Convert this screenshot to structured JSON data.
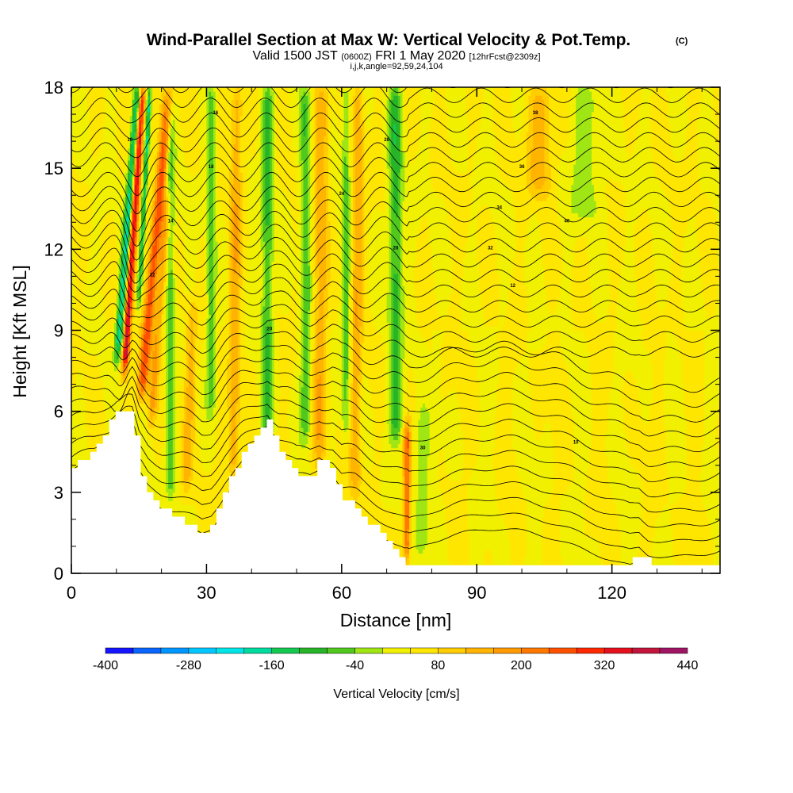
{
  "chart_data": {
    "type": "heatmap",
    "title": "Wind-Parallel Section at Max W: Vertical Velocity & Pot.Temp.",
    "title_suffix": "(C)",
    "subtitle": {
      "valid_label": "Valid 1500 JST",
      "zulu": "(0600Z)",
      "date": "FRI 1 May 2020",
      "forecast": "[12hrFcst@2309z]"
    },
    "params_line": "i,j,k,angle=92,59,24,104",
    "xlabel": "Distance [nm]",
    "ylabel": "Height [Kft MSL]",
    "xlim": [
      0,
      144
    ],
    "ylim": [
      0,
      18
    ],
    "x_ticks": [
      "0",
      "30",
      "60",
      "90",
      "120"
    ],
    "x_tick_values": [
      0,
      30,
      60,
      90,
      120
    ],
    "y_ticks": [
      "0",
      "3",
      "6",
      "9",
      "12",
      "15",
      "18"
    ],
    "y_tick_values": [
      0,
      3,
      6,
      9,
      12,
      15,
      18
    ],
    "colorbar": {
      "title": "Vertical Velocity [cm/s]",
      "levels": [
        -400,
        -360,
        -320,
        -280,
        -240,
        -200,
        -160,
        -120,
        -80,
        -40,
        0,
        40,
        80,
        120,
        160,
        200,
        240,
        280,
        320,
        360,
        400,
        440
      ],
      "tick_labels": [
        "-400",
        "-280",
        "-160",
        "-40",
        "80",
        "200",
        "320",
        "440"
      ],
      "tick_values": [
        -400,
        -280,
        -160,
        -40,
        80,
        200,
        320,
        440
      ],
      "colors": [
        "#1414ff",
        "#0a64ff",
        "#0096ff",
        "#00c8ff",
        "#00e6e6",
        "#00dca0",
        "#14c850",
        "#28b428",
        "#50c81e",
        "#a0e614",
        "#f0f000",
        "#ffe600",
        "#ffcd00",
        "#ffb400",
        "#ff9b00",
        "#ff7800",
        "#ff5000",
        "#ff2800",
        "#e60f1e",
        "#c3143c",
        "#a01464",
        "#641496"
      ]
    },
    "terrain": {
      "x": [
        0,
        2,
        5,
        8,
        10,
        12,
        13.5,
        15,
        17,
        20,
        24,
        29,
        31,
        34,
        38,
        42,
        43.5,
        46,
        50,
        53,
        55,
        58,
        60,
        63,
        66,
        70,
        74,
        78,
        90,
        110,
        124,
        126,
        128,
        130,
        144
      ],
      "h": [
        3.9,
        4.2,
        4.7,
        5.5,
        6.1,
        6.1,
        5.8,
        3.8,
        2.9,
        2.4,
        2.0,
        1.4,
        1.8,
        3.2,
        4.5,
        5.5,
        5.8,
        4.6,
        3.6,
        3.6,
        4.2,
        3.8,
        2.7,
        2.5,
        1.9,
        1.2,
        0.4,
        0.35,
        0.35,
        0.35,
        0.35,
        0.7,
        0.35,
        0.35,
        0.35
      ]
    },
    "updraft_bands": [
      {
        "x": 11.8,
        "bottom": 7.5,
        "top": 18,
        "tilt": 0.38,
        "width": 0.8,
        "peak": 340
      },
      {
        "x": 15.5,
        "bottom": 6.5,
        "top": 18,
        "tilt": 0.55,
        "width": 1.2,
        "peak": 230
      },
      {
        "x": 17.6,
        "bottom": 5.5,
        "top": 14,
        "tilt": 0.45,
        "width": 1.0,
        "peak": 120
      },
      {
        "x": 25.5,
        "bottom": 3.0,
        "top": 10,
        "tilt": 0.2,
        "width": 1.2,
        "peak": 90
      },
      {
        "x": 36,
        "bottom": 3.5,
        "top": 18,
        "tilt": 0.05,
        "width": 1.3,
        "peak": 110
      },
      {
        "x": 55,
        "bottom": 4.0,
        "top": 18,
        "tilt": 0.05,
        "width": 1.5,
        "peak": 110
      },
      {
        "x": 63,
        "bottom": 3.0,
        "top": 18,
        "tilt": 0.05,
        "width": 1.3,
        "peak": 110
      },
      {
        "x": 74.5,
        "bottom": 0.5,
        "top": 5.5,
        "tilt": 0.0,
        "width": 0.8,
        "peak": 200
      },
      {
        "x": 104,
        "bottom": 14,
        "top": 18,
        "tilt": 0.0,
        "width": 3.0,
        "peak": 100
      }
    ],
    "downdraft_bands": [
      {
        "x": 10.3,
        "bottom": 8.0,
        "top": 18,
        "tilt": 0.45,
        "width": 0.9,
        "peak": -230
      },
      {
        "x": 15.0,
        "bottom": 10,
        "top": 18,
        "tilt": 0.3,
        "width": 0.5,
        "peak": -200
      },
      {
        "x": 22,
        "bottom": 3.0,
        "top": 18,
        "tilt": 0.0,
        "width": 1.0,
        "peak": -110
      },
      {
        "x": 31,
        "bottom": 6.0,
        "top": 18,
        "tilt": 0.0,
        "width": 1.0,
        "peak": -100
      },
      {
        "x": 43.5,
        "bottom": 5.0,
        "top": 18,
        "tilt": 0.0,
        "width": 1.3,
        "peak": -130
      },
      {
        "x": 52,
        "bottom": 5.0,
        "top": 18,
        "tilt": 0.0,
        "width": 1.2,
        "peak": -110
      },
      {
        "x": 61,
        "bottom": 5.0,
        "top": 18,
        "tilt": 0.0,
        "width": 1.0,
        "peak": -100
      },
      {
        "x": 72,
        "bottom": 5.0,
        "top": 18,
        "tilt": 0.0,
        "width": 1.5,
        "peak": -140
      },
      {
        "x": 78,
        "bottom": 0.5,
        "top": 6.0,
        "tilt": 0.0,
        "width": 1.8,
        "peak": -60
      },
      {
        "x": 114,
        "bottom": 13,
        "top": 18,
        "tilt": 0.0,
        "width": 3.5,
        "peak": -60
      }
    ],
    "isentrope_count": 32,
    "contour_labels": [
      "10",
      "12",
      "14",
      "16",
      "18",
      "20",
      "22",
      "24",
      "26",
      "28",
      "30",
      "32",
      "34",
      "36",
      "38",
      "40"
    ],
    "grid": false,
    "legend": "colorbar-bottom"
  }
}
